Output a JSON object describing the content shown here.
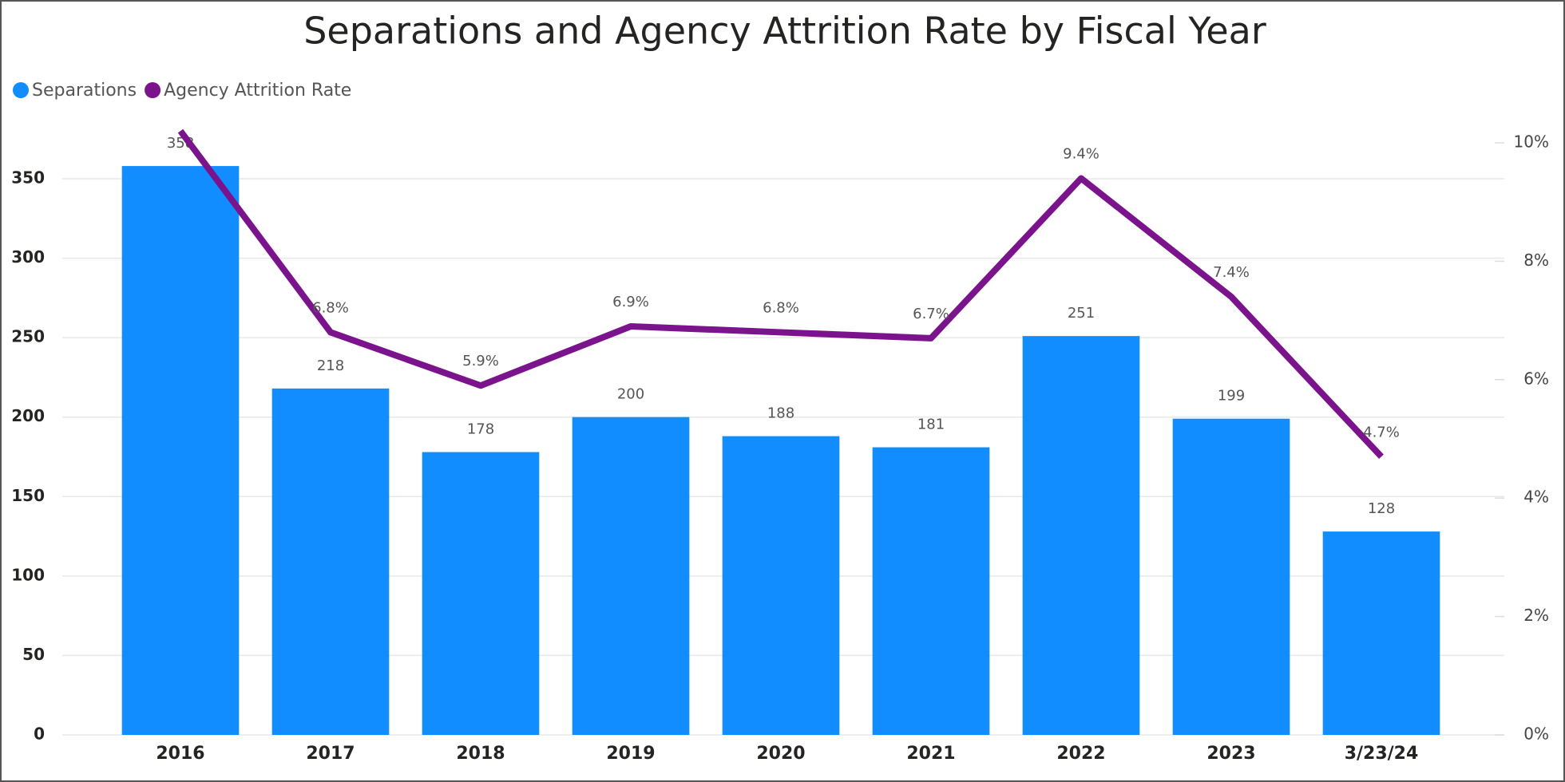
{
  "chart_data": {
    "type": "bar_line",
    "title": "Separations and Agency Attrition Rate by Fiscal Year",
    "categories": [
      "2016",
      "2017",
      "2018",
      "2019",
      "2020",
      "2021",
      "2022",
      "2023",
      "3/23/24"
    ],
    "series": [
      {
        "name": "Separations",
        "color": "#118dff",
        "values": [
          358,
          218,
          178,
          200,
          188,
          181,
          251,
          199,
          128
        ]
      },
      {
        "name": "Agency Attrition Rate",
        "color": "#7b148c",
        "axis": "y2",
        "values": [
          10.2,
          6.8,
          5.9,
          6.9,
          6.8,
          6.7,
          9.4,
          7.4,
          4.7
        ],
        "value_labels": [
          null,
          "6.8%",
          "5.9%",
          "6.9%",
          "6.8%",
          "6.7%",
          "9.4%",
          "7.4%",
          "4.7%"
        ]
      }
    ],
    "ylim": [
      0,
      372.6
    ],
    "yticks": [
      0,
      50,
      100,
      150,
      200,
      250,
      300,
      350
    ],
    "y2lim": [
      0,
      10
    ],
    "y2ticks": [
      {
        "value": 0,
        "label": "0%"
      },
      {
        "value": 2,
        "label": "2%"
      },
      {
        "value": 4,
        "label": "4%"
      },
      {
        "value": 6,
        "label": "6%"
      },
      {
        "value": 8,
        "label": "8%"
      },
      {
        "value": 10,
        "label": "10%"
      }
    ],
    "grid": true,
    "legend": "top-left"
  }
}
